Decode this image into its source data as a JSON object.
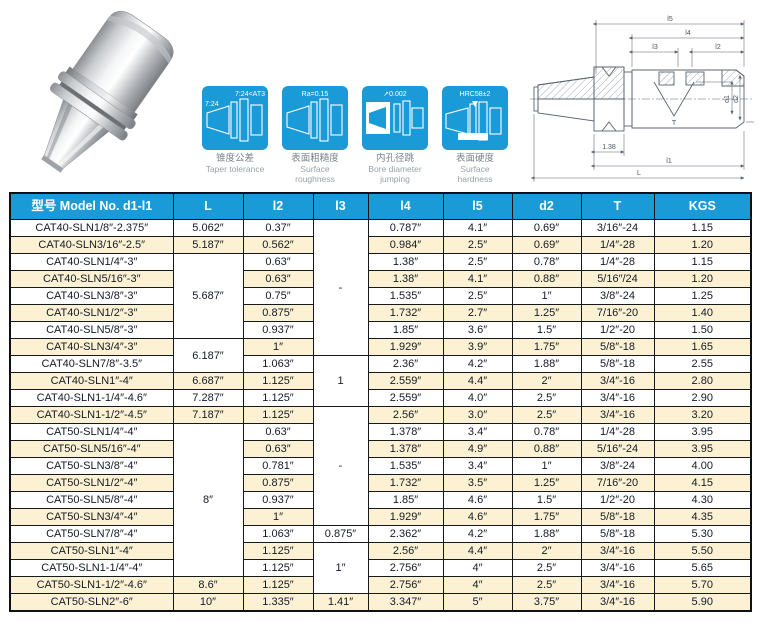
{
  "colors": {
    "header_blue": "#1b9ad8",
    "tile_blue": "#1b9ad8",
    "row_cream": "#fcf2d3",
    "row_white": "#ffffff",
    "border_dark": "#0d1117"
  },
  "spec_icons": [
    {
      "annotations": [
        "7:24",
        "7:24<AT3"
      ],
      "caption_zh": "锥度公差",
      "caption_en": "Taper tolerance"
    },
    {
      "annotations": [
        "Ra=0.15"
      ],
      "caption_zh": "表面粗糙度",
      "caption_en": "Surface roughness"
    },
    {
      "annotations": [
        "↗0.002"
      ],
      "caption_zh": "内孔径跳",
      "caption_en": "Bore diameter jumping"
    },
    {
      "annotations": [
        "HRC58±2"
      ],
      "caption_zh": "表面硬度",
      "caption_en": "Surface hardness"
    }
  ],
  "drawing": {
    "labels": {
      "l5": "l5",
      "l4": "l4",
      "l3": "l3",
      "l2": "l2",
      "t": "T",
      "flange": "1.38",
      "l1": "l1",
      "L": "L",
      "d1": "d1",
      "d2": "d2"
    }
  },
  "table": {
    "headers": [
      "型号 Model No. d1-l1",
      "L",
      "l2",
      "l3",
      "l4",
      "l5",
      "d2",
      "T",
      "KGS"
    ],
    "rows": [
      {
        "tint": false,
        "cells": [
          "CAT40-SLN1/8″-2.375″",
          "5.062″",
          "0.37″",
          {
            "v": "-",
            "rs": 8
          },
          "0.787″",
          "4.1″",
          "0.69″",
          "3/16″-24",
          "1.15"
        ]
      },
      {
        "tint": true,
        "cells": [
          "CAT40-SLN3/16″-2.5″",
          "5.187″",
          "0.562″",
          null,
          "0.984″",
          "2.5″",
          "0.69″",
          "1/4″-28",
          "1.20"
        ]
      },
      {
        "tint": false,
        "cells": [
          "CAT40-SLN1/4″-3″",
          {
            "v": "5.687″",
            "rs": 5
          },
          "0.63″",
          null,
          "1.38″",
          "2.5″",
          "0.78″",
          "1/4″-28",
          "1.15"
        ]
      },
      {
        "tint": true,
        "cells": [
          "CAT40-SLN5/16″-3″",
          null,
          "0.63″",
          null,
          "1.38″",
          "4.1″",
          "0.88″",
          "5/16″/24",
          "1.20"
        ]
      },
      {
        "tint": false,
        "cells": [
          "CAT40-SLN3/8″-3″",
          null,
          "0.75″",
          null,
          "1.535″",
          "2.5″",
          "1″",
          "3/8″-24",
          "1.25"
        ]
      },
      {
        "tint": true,
        "cells": [
          "CAT40-SLN1/2″-3″",
          null,
          "0.875″",
          null,
          "1.732″",
          "2.7″",
          "1.25″",
          "7/16″-20",
          "1.40"
        ]
      },
      {
        "tint": false,
        "cells": [
          "CAT40-SLN5/8″-3″",
          null,
          "0.937″",
          null,
          "1.85″",
          "3.6″",
          "1.5″",
          "1/2″-20",
          "1.50"
        ]
      },
      {
        "tint": true,
        "cells": [
          "CAT40-SLN3/4″-3″",
          {
            "v": "6.187″",
            "rs": 2
          },
          "1″",
          null,
          "1.929″",
          "3.9″",
          "1.75″",
          "5/8″-18",
          "1.65"
        ]
      },
      {
        "tint": false,
        "cells": [
          "CAT40-SLN7/8″-3.5″",
          null,
          "1.063″",
          {
            "v": "1",
            "rs": 3
          },
          "2.36″",
          "4.2″",
          "1.88″",
          "5/8″-18",
          "2.55"
        ]
      },
      {
        "tint": true,
        "cells": [
          "CAT40-SLN1″-4″",
          "6.687″",
          "1.125″",
          null,
          "2.559″",
          "4.4″",
          "2″",
          "3/4″-16",
          "2.80"
        ]
      },
      {
        "tint": false,
        "cells": [
          "CAT40-SLN1-1/4″-4.6″",
          "7.287″",
          "1.125″",
          null,
          "2.559″",
          "4.0″",
          "2.5″",
          "3/4″-16",
          "2.90"
        ]
      },
      {
        "tint": true,
        "cells": [
          "CAT40-SLN1-1/2″-4.5″",
          "7.187″",
          "1.125″",
          {
            "v": "-",
            "rs": 7
          },
          "2.56″",
          "3.0″",
          "2.5″",
          "3/4″-16",
          "3.20"
        ]
      },
      {
        "tint": false,
        "cells": [
          "CAT50-SLN1/4″-4″",
          {
            "v": "8″",
            "rs": 9
          },
          "0.63″",
          null,
          "1.378″",
          "3.4″",
          "0.78″",
          "1/4″-28",
          "3.95"
        ]
      },
      {
        "tint": true,
        "cells": [
          "CAT50-SLN5/16″-4″",
          null,
          "0.63″",
          null,
          "1.378″",
          "4.9″",
          "0.88″",
          "5/16″-24",
          "3.95"
        ]
      },
      {
        "tint": false,
        "cells": [
          "CAT50-SLN3/8″-4″",
          null,
          "0.781″",
          null,
          "1.535″",
          "3.4″",
          "1″",
          "3/8″-24",
          "4.00"
        ]
      },
      {
        "tint": true,
        "cells": [
          "CAT50-SLN1/2″-4″",
          null,
          "0.875″",
          null,
          "1.732″",
          "3.5″",
          "1.25″",
          "7/16″-20",
          "4.15"
        ]
      },
      {
        "tint": false,
        "cells": [
          "CAT50-SLN5/8″-4″",
          null,
          "0.937″",
          null,
          "1.85″",
          "4.6″",
          "1.5″",
          "1/2″-20",
          "4.30"
        ]
      },
      {
        "tint": true,
        "cells": [
          "CAT50-SLN3/4″-4″",
          null,
          "1″",
          null,
          "1.929″",
          "4.6″",
          "1.75″",
          "5/8″-18",
          "4.35"
        ]
      },
      {
        "tint": false,
        "cells": [
          "CAT50-SLN7/8″-4″",
          null,
          "1.063″",
          "0.875″",
          "2.362″",
          "4.2″",
          "1.88″",
          "5/8″-18",
          "5.30"
        ]
      },
      {
        "tint": true,
        "cells": [
          "CAT50-SLN1″-4″",
          null,
          "1.125″",
          {
            "v": "1″",
            "rs": 3
          },
          "2.56″",
          "4.4″",
          "2″",
          "3/4″-16",
          "5.50"
        ]
      },
      {
        "tint": false,
        "cells": [
          "CAT50-SLN1-1/4″-4″",
          null,
          "1.125″",
          null,
          "2.756″",
          "4″",
          "2.5″",
          "3/4″-16",
          "5.65"
        ]
      },
      {
        "tint": true,
        "cells": [
          "CAT50-SLN1-1/2″-4.6″",
          "8.6″",
          "1.125″",
          null,
          "2.756″",
          "4″",
          "2.5″",
          "3/4″-16",
          "5.70"
        ]
      },
      {
        "tint": true,
        "cells": [
          "CAT50-SLN2″-6″",
          "10″",
          "1.335″",
          "1.41″",
          "3.347″",
          "5″",
          "3.75″",
          "3/4″-16",
          "5.90"
        ]
      }
    ]
  }
}
